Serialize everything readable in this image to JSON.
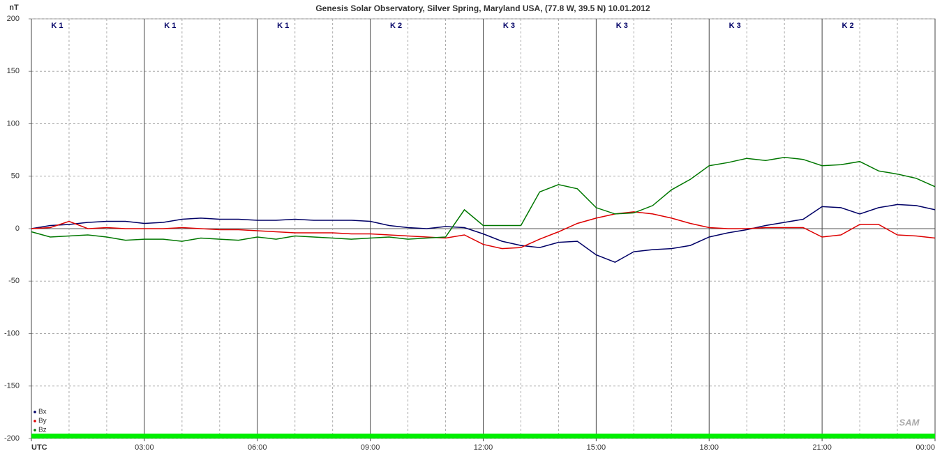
{
  "chart_data": {
    "type": "line",
    "title": "Genesis Solar Observatory, Silver Spring, Maryland USA, (77.8 W, 39.5 N)  10.01.2012",
    "y_label": "nT",
    "logo": "SAM",
    "k_labels": [
      "K 1",
      "K 1",
      "K 1",
      "K 2",
      "K 3",
      "K 3",
      "K 3",
      "K 2"
    ],
    "x": [
      0,
      0.5,
      1,
      1.5,
      2,
      2.5,
      3,
      3.5,
      4,
      4.5,
      5,
      5.5,
      6,
      6.5,
      7,
      7.5,
      8,
      8.5,
      9,
      9.5,
      10,
      10.5,
      11,
      11.5,
      12,
      12.5,
      13,
      13.5,
      14,
      14.5,
      15,
      15.5,
      16,
      16.5,
      17,
      17.5,
      18,
      18.5,
      19,
      19.5,
      20,
      20.5,
      21,
      21.5,
      22,
      22.5,
      23,
      23.5,
      24
    ],
    "series": [
      {
        "name": "Bx",
        "color": "#000066",
        "values": [
          0,
          3,
          4,
          6,
          7,
          7,
          5,
          6,
          9,
          10,
          9,
          9,
          8,
          8,
          9,
          8,
          8,
          8,
          7,
          3,
          1,
          0,
          2,
          1,
          -5,
          -12,
          -16,
          -18,
          -13,
          -12,
          -25,
          -32,
          -22,
          -20,
          -19,
          -16,
          -8,
          -4,
          -1,
          3,
          6,
          9,
          21,
          20,
          14,
          20,
          23,
          22,
          18
        ]
      },
      {
        "name": "By",
        "color": "#dd0000",
        "values": [
          0,
          1,
          7,
          0,
          1,
          0,
          0,
          0,
          1,
          0,
          -1,
          -1,
          -2,
          -3,
          -4,
          -4,
          -4,
          -5,
          -5,
          -6,
          -7,
          -8,
          -9,
          -6,
          -15,
          -19,
          -18,
          -10,
          -3,
          5,
          10,
          14,
          16,
          14,
          10,
          5,
          1,
          0,
          0,
          1,
          1,
          1,
          -8,
          -6,
          4,
          4,
          -6,
          -7,
          -9
        ]
      },
      {
        "name": "Bz",
        "color": "#007700",
        "values": [
          -3,
          -8,
          -7,
          -6,
          -8,
          -11,
          -10,
          -10,
          -12,
          -9,
          -10,
          -11,
          -8,
          -10,
          -7,
          -8,
          -9,
          -10,
          -9,
          -8,
          -10,
          -9,
          -8,
          18,
          3,
          3,
          3,
          35,
          42,
          38,
          20,
          14,
          15,
          22,
          37,
          47,
          60,
          63,
          67,
          65,
          68,
          66,
          60,
          61,
          64,
          55,
          52,
          48,
          40
        ]
      }
    ],
    "xlim": [
      0,
      24
    ],
    "xticks": [
      {
        "value": 0,
        "label": "UTC"
      },
      {
        "value": 3,
        "label": "03:00"
      },
      {
        "value": 6,
        "label": "06:00"
      },
      {
        "value": 9,
        "label": "09:00"
      },
      {
        "value": 12,
        "label": "12:00"
      },
      {
        "value": 15,
        "label": "15:00"
      },
      {
        "value": 18,
        "label": "18:00"
      },
      {
        "value": 21,
        "label": "21:00"
      },
      {
        "value": 24,
        "label": "00:00"
      }
    ],
    "ylim": [
      -200,
      200
    ],
    "yticks": [
      -200,
      -150,
      -100,
      -50,
      0,
      50,
      100,
      150,
      200
    ],
    "grid": true
  }
}
